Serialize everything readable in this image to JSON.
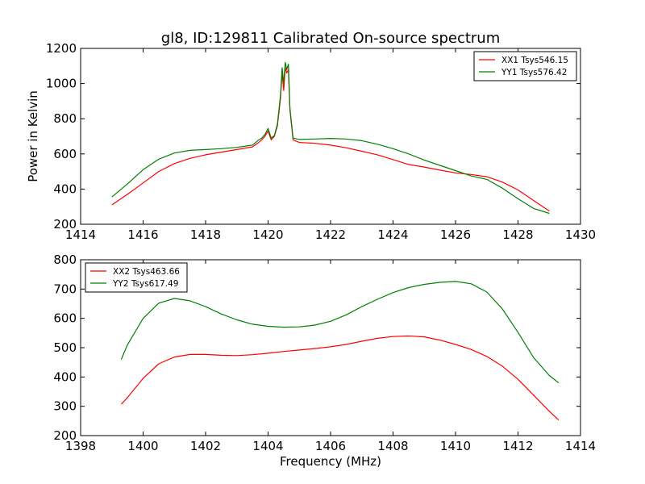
{
  "figure": {
    "title": "gl8, ID:129811 Calibrated On-source spectrum"
  },
  "chart_data": [
    {
      "type": "line",
      "title": "gl8, ID:129811 Calibrated On-source spectrum",
      "xlabel": "",
      "ylabel": "Power in Kelvin",
      "xlim": [
        1414,
        1430
      ],
      "ylim": [
        200,
        1200
      ],
      "xticks": [
        1414,
        1416,
        1418,
        1420,
        1422,
        1424,
        1426,
        1428,
        1430
      ],
      "yticks": [
        200,
        400,
        600,
        800,
        1000,
        1200
      ],
      "grid": false,
      "legend_position": "top-right",
      "series": [
        {
          "name": "XX1 Tsys546.15",
          "color": "#ff0000",
          "x": [
            1415.0,
            1415.5,
            1416.0,
            1416.5,
            1417.0,
            1417.5,
            1418.0,
            1418.5,
            1419.0,
            1419.5,
            1419.7,
            1419.8,
            1419.9,
            1420.0,
            1420.1,
            1420.2,
            1420.3,
            1420.4,
            1420.45,
            1420.5,
            1420.55,
            1420.6,
            1420.65,
            1420.7,
            1420.8,
            1421.0,
            1421.5,
            1422.0,
            1422.5,
            1423.0,
            1423.5,
            1424.0,
            1424.5,
            1425.0,
            1425.5,
            1426.0,
            1426.5,
            1427.0,
            1427.5,
            1428.0,
            1428.5,
            1429.0
          ],
          "values": [
            310,
            370,
            435,
            500,
            545,
            575,
            595,
            610,
            625,
            640,
            665,
            680,
            700,
            730,
            680,
            700,
            760,
            920,
            1060,
            960,
            1090,
            1060,
            1080,
            850,
            680,
            665,
            660,
            650,
            635,
            615,
            595,
            568,
            540,
            525,
            508,
            492,
            483,
            470,
            440,
            395,
            335,
            275
          ]
        },
        {
          "name": "YY1 Tsys576.42",
          "color": "#008000",
          "x": [
            1415.0,
            1415.5,
            1416.0,
            1416.5,
            1417.0,
            1417.5,
            1418.0,
            1418.5,
            1419.0,
            1419.5,
            1419.7,
            1419.8,
            1419.9,
            1420.0,
            1420.1,
            1420.2,
            1420.3,
            1420.4,
            1420.45,
            1420.5,
            1420.55,
            1420.6,
            1420.65,
            1420.7,
            1420.8,
            1421.0,
            1421.5,
            1422.0,
            1422.5,
            1423.0,
            1423.5,
            1424.0,
            1424.5,
            1425.0,
            1425.5,
            1426.0,
            1426.5,
            1427.0,
            1427.5,
            1428.0,
            1428.5,
            1429.0
          ],
          "values": [
            355,
            430,
            510,
            570,
            605,
            620,
            625,
            630,
            637,
            650,
            680,
            690,
            710,
            745,
            690,
            705,
            770,
            940,
            1090,
            1000,
            1120,
            1080,
            1110,
            860,
            690,
            682,
            685,
            688,
            685,
            675,
            655,
            630,
            600,
            565,
            535,
            505,
            475,
            455,
            405,
            345,
            290,
            262
          ]
        }
      ]
    },
    {
      "type": "line",
      "title": "",
      "xlabel": "Frequency (MHz)",
      "ylabel": "",
      "xlim": [
        1398,
        1414
      ],
      "ylim": [
        200,
        800
      ],
      "xticks": [
        1398,
        1400,
        1402,
        1404,
        1406,
        1408,
        1410,
        1412,
        1414
      ],
      "yticks": [
        200,
        300,
        400,
        500,
        600,
        700,
        800
      ],
      "grid": false,
      "legend_position": "top-left",
      "series": [
        {
          "name": "XX2 Tsys463.66",
          "color": "#ff0000",
          "x": [
            1399.3,
            1399.5,
            1400.0,
            1400.5,
            1401.0,
            1401.5,
            1402.0,
            1402.5,
            1403.0,
            1403.5,
            1404.0,
            1404.5,
            1405.0,
            1405.5,
            1406.0,
            1406.5,
            1407.0,
            1407.5,
            1408.0,
            1408.5,
            1409.0,
            1409.5,
            1410.0,
            1410.5,
            1411.0,
            1411.5,
            1412.0,
            1412.5,
            1413.0,
            1413.3
          ],
          "values": [
            307,
            330,
            395,
            445,
            468,
            477,
            477,
            474,
            473,
            476,
            481,
            487,
            492,
            497,
            503,
            511,
            522,
            532,
            538,
            540,
            537,
            526,
            511,
            494,
            470,
            437,
            392,
            338,
            283,
            253
          ]
        },
        {
          "name": "YY2 Tsys617.49",
          "color": "#008000",
          "x": [
            1399.3,
            1399.5,
            1400.0,
            1400.5,
            1401.0,
            1401.5,
            1402.0,
            1402.5,
            1403.0,
            1403.5,
            1404.0,
            1404.5,
            1405.0,
            1405.5,
            1406.0,
            1406.5,
            1407.0,
            1407.5,
            1408.0,
            1408.5,
            1409.0,
            1409.5,
            1410.0,
            1410.5,
            1411.0,
            1411.5,
            1412.0,
            1412.5,
            1413.0,
            1413.3
          ],
          "values": [
            460,
            510,
            600,
            652,
            668,
            660,
            640,
            615,
            595,
            580,
            573,
            570,
            571,
            577,
            590,
            612,
            640,
            665,
            688,
            705,
            716,
            723,
            726,
            718,
            690,
            632,
            552,
            466,
            405,
            380
          ]
        }
      ]
    }
  ]
}
